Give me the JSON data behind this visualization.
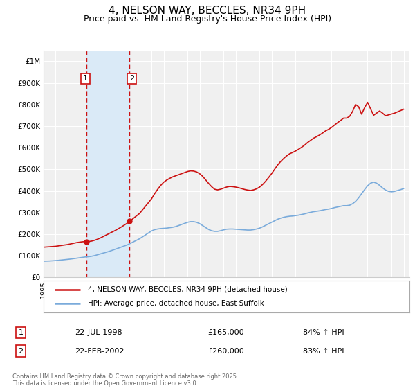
{
  "title": "4, NELSON WAY, BECCLES, NR34 9PH",
  "subtitle": "Price paid vs. HM Land Registry's House Price Index (HPI)",
  "title_fontsize": 11,
  "subtitle_fontsize": 9,
  "ylabel_ticks": [
    "£0",
    "£100K",
    "£200K",
    "£300K",
    "£400K",
    "£500K",
    "£600K",
    "£700K",
    "£800K",
    "£900K",
    "£1M"
  ],
  "ytick_values": [
    0,
    100000,
    200000,
    300000,
    400000,
    500000,
    600000,
    700000,
    800000,
    900000,
    1000000
  ],
  "ylim": [
    0,
    1050000
  ],
  "xlim_start": 1995.0,
  "xlim_end": 2025.5,
  "background_color": "#ffffff",
  "plot_bg_color": "#f0f0f0",
  "grid_color": "#ffffff",
  "hpi_color": "#7aabdb",
  "price_color": "#cc1111",
  "purchase1_date": "22-JUL-1998",
  "purchase1_price": 165000,
  "purchase1_pct": "84%",
  "purchase2_date": "22-FEB-2002",
  "purchase2_price": 260000,
  "purchase2_pct": "83%",
  "legend_label1": "4, NELSON WAY, BECCLES, NR34 9PH (detached house)",
  "legend_label2": "HPI: Average price, detached house, East Suffolk",
  "footnote": "Contains HM Land Registry data © Crown copyright and database right 2025.\nThis data is licensed under the Open Government Licence v3.0.",
  "highlight_rect_color": "#daeaf7",
  "vline_color": "#cc1111",
  "vline_style": "--",
  "purchase1_x": 1998.55,
  "purchase2_x": 2002.13,
  "purchase1_dot_y": 165000,
  "purchase2_dot_y": 260000,
  "hpi_x": [
    1995.0,
    1995.25,
    1995.5,
    1995.75,
    1996.0,
    1996.25,
    1996.5,
    1996.75,
    1997.0,
    1997.25,
    1997.5,
    1997.75,
    1998.0,
    1998.25,
    1998.5,
    1998.75,
    1999.0,
    1999.25,
    1999.5,
    1999.75,
    2000.0,
    2000.25,
    2000.5,
    2000.75,
    2001.0,
    2001.25,
    2001.5,
    2001.75,
    2002.0,
    2002.25,
    2002.5,
    2002.75,
    2003.0,
    2003.25,
    2003.5,
    2003.75,
    2004.0,
    2004.25,
    2004.5,
    2004.75,
    2005.0,
    2005.25,
    2005.5,
    2005.75,
    2006.0,
    2006.25,
    2006.5,
    2006.75,
    2007.0,
    2007.25,
    2007.5,
    2007.75,
    2008.0,
    2008.25,
    2008.5,
    2008.75,
    2009.0,
    2009.25,
    2009.5,
    2009.75,
    2010.0,
    2010.25,
    2010.5,
    2010.75,
    2011.0,
    2011.25,
    2011.5,
    2011.75,
    2012.0,
    2012.25,
    2012.5,
    2012.75,
    2013.0,
    2013.25,
    2013.5,
    2013.75,
    2014.0,
    2014.25,
    2014.5,
    2014.75,
    2015.0,
    2015.25,
    2015.5,
    2015.75,
    2016.0,
    2016.25,
    2016.5,
    2016.75,
    2017.0,
    2017.25,
    2017.5,
    2017.75,
    2018.0,
    2018.25,
    2018.5,
    2018.75,
    2019.0,
    2019.25,
    2019.5,
    2019.75,
    2020.0,
    2020.25,
    2020.5,
    2020.75,
    2021.0,
    2021.25,
    2021.5,
    2021.75,
    2022.0,
    2022.25,
    2022.5,
    2022.75,
    2023.0,
    2023.25,
    2023.5,
    2023.75,
    2024.0,
    2024.25,
    2024.5,
    2024.75,
    2025.0
  ],
  "hpi_y": [
    75000,
    75500,
    76000,
    77000,
    78000,
    79000,
    80500,
    82000,
    83500,
    85000,
    87000,
    89000,
    91000,
    93000,
    95000,
    96000,
    98000,
    101000,
    105000,
    109000,
    113000,
    117000,
    121000,
    126000,
    131000,
    136000,
    141000,
    146000,
    151000,
    158000,
    165000,
    172000,
    179000,
    188000,
    197000,
    206000,
    215000,
    221000,
    224000,
    226000,
    227000,
    228000,
    230000,
    232000,
    235000,
    240000,
    245000,
    250000,
    255000,
    258000,
    258000,
    255000,
    249000,
    240000,
    231000,
    222000,
    216000,
    213000,
    213000,
    216000,
    220000,
    223000,
    224000,
    224000,
    223000,
    222000,
    221000,
    220000,
    219000,
    219000,
    221000,
    224000,
    228000,
    234000,
    241000,
    248000,
    255000,
    262000,
    269000,
    274000,
    278000,
    281000,
    283000,
    284000,
    286000,
    288000,
    291000,
    294000,
    298000,
    301000,
    304000,
    306000,
    308000,
    311000,
    314000,
    316000,
    319000,
    323000,
    326000,
    329000,
    332000,
    332000,
    334000,
    341000,
    352000,
    368000,
    387000,
    406000,
    424000,
    436000,
    441000,
    436000,
    426000,
    414000,
    404000,
    398000,
    396000,
    398000,
    402000,
    406000,
    411000
  ],
  "price_x": [
    1995.0,
    1995.25,
    1995.5,
    1995.75,
    1996.0,
    1996.25,
    1996.5,
    1996.75,
    1997.0,
    1997.25,
    1997.5,
    1997.75,
    1998.0,
    1998.25,
    1998.5,
    1998.75,
    1999.0,
    1999.25,
    1999.5,
    1999.75,
    2000.0,
    2000.25,
    2000.5,
    2000.75,
    2001.0,
    2001.25,
    2001.5,
    2001.75,
    2002.0,
    2002.25,
    2002.5,
    2002.75,
    2003.0,
    2003.25,
    2003.5,
    2003.75,
    2004.0,
    2004.25,
    2004.5,
    2004.75,
    2005.0,
    2005.25,
    2005.5,
    2005.75,
    2006.0,
    2006.25,
    2006.5,
    2006.75,
    2007.0,
    2007.25,
    2007.5,
    2007.75,
    2008.0,
    2008.25,
    2008.5,
    2008.75,
    2009.0,
    2009.25,
    2009.5,
    2009.75,
    2010.0,
    2010.25,
    2010.5,
    2010.75,
    2011.0,
    2011.25,
    2011.5,
    2011.75,
    2012.0,
    2012.25,
    2012.5,
    2012.75,
    2013.0,
    2013.25,
    2013.5,
    2013.75,
    2014.0,
    2014.25,
    2014.5,
    2014.75,
    2015.0,
    2015.25,
    2015.5,
    2015.75,
    2016.0,
    2016.25,
    2016.5,
    2016.75,
    2017.0,
    2017.25,
    2017.5,
    2017.75,
    2018.0,
    2018.25,
    2018.5,
    2018.75,
    2019.0,
    2019.25,
    2019.5,
    2019.75,
    2020.0,
    2020.25,
    2020.5,
    2020.75,
    2021.0,
    2021.25,
    2021.5,
    2021.75,
    2022.0,
    2022.25,
    2022.5,
    2022.75,
    2023.0,
    2023.25,
    2023.5,
    2023.75,
    2024.0,
    2024.25,
    2024.5,
    2024.75,
    2025.0
  ],
  "price_y": [
    140000,
    141000,
    142000,
    143000,
    144000,
    146000,
    148000,
    150000,
    152000,
    155000,
    158000,
    161000,
    163000,
    165000,
    165500,
    166000,
    168000,
    172000,
    177000,
    183000,
    190000,
    197000,
    204000,
    211000,
    218000,
    226000,
    234000,
    243000,
    252000,
    263000,
    274000,
    285000,
    296000,
    313000,
    330000,
    347000,
    364000,
    387000,
    407000,
    425000,
    440000,
    450000,
    458000,
    465000,
    470000,
    475000,
    480000,
    485000,
    490000,
    493000,
    492000,
    488000,
    480000,
    468000,
    452000,
    435000,
    420000,
    408000,
    405000,
    408000,
    413000,
    418000,
    421000,
    420000,
    418000,
    415000,
    411000,
    407000,
    404000,
    402000,
    405000,
    410000,
    418000,
    430000,
    445000,
    462000,
    480000,
    500000,
    520000,
    536000,
    550000,
    562000,
    572000,
    578000,
    585000,
    593000,
    602000,
    612000,
    624000,
    634000,
    644000,
    651000,
    659000,
    668000,
    678000,
    685000,
    694000,
    705000,
    716000,
    726000,
    737000,
    737000,
    745000,
    768000,
    800000,
    790000,
    755000,
    785000,
    810000,
    780000,
    750000,
    760000,
    770000,
    760000,
    748000,
    752000,
    756000,
    760000,
    766000,
    772000,
    778000
  ]
}
